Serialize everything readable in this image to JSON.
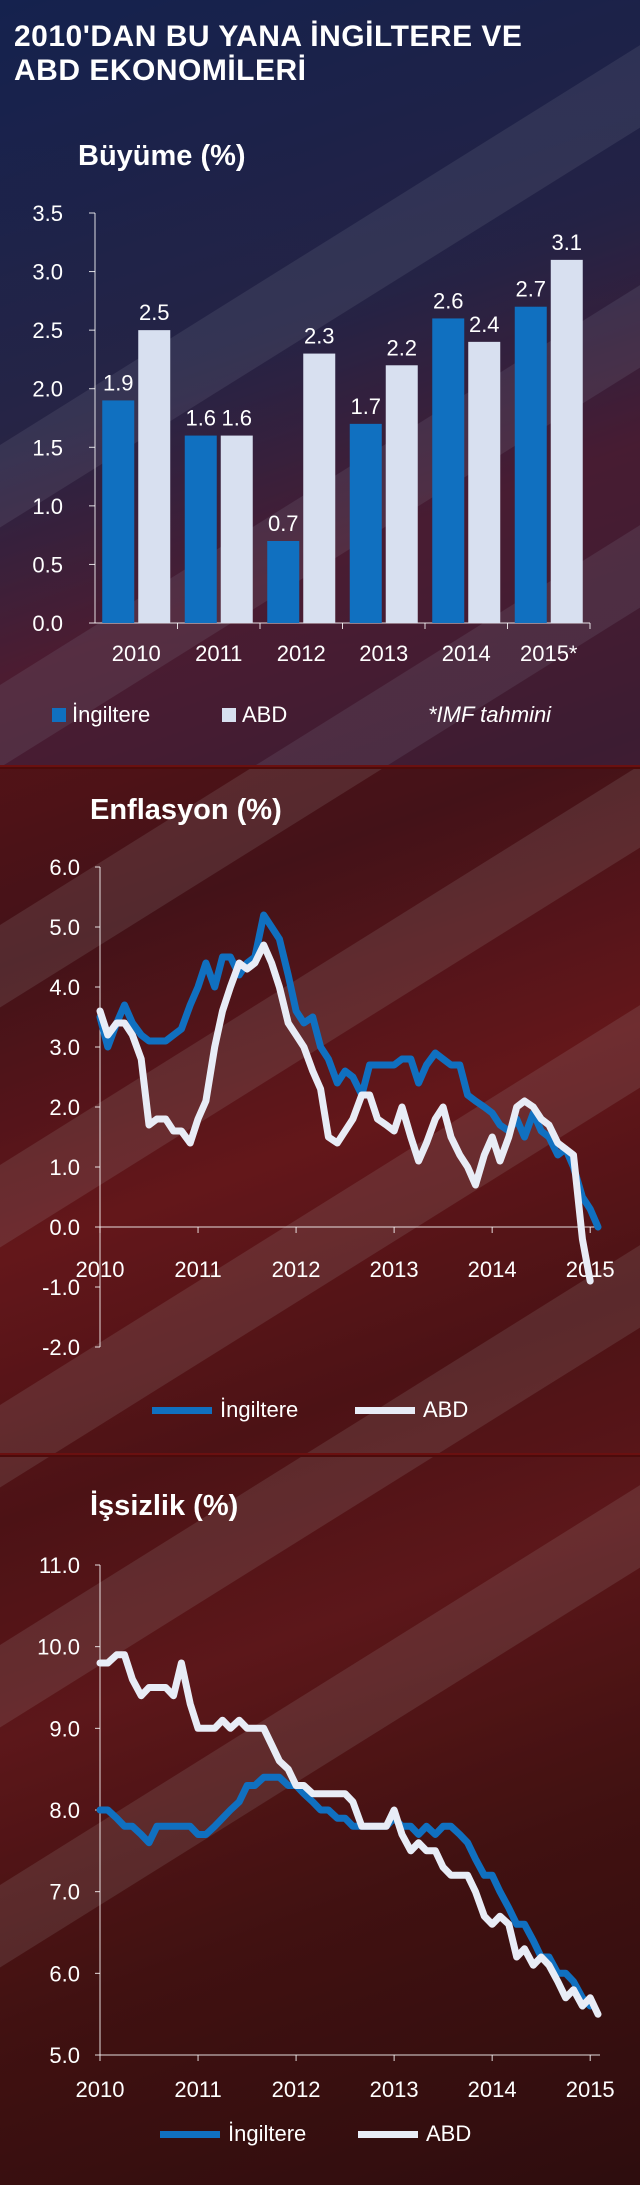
{
  "title": "2010'DAN BU YANA İNGİLTERE VE ABD EKONOMİLERİ",
  "colors": {
    "uk": "#1070c0",
    "us": "#d8e0f0"
  },
  "growth": {
    "subtitle": "Büyüme (%)",
    "note": "*IMF tahmini",
    "legend": {
      "uk": "İngiltere",
      "us": "ABD"
    }
  },
  "inflation": {
    "subtitle": "Enflasyon (%)",
    "legend": {
      "uk": "İngiltere",
      "us": "ABD"
    }
  },
  "unemployment": {
    "subtitle": "İşsizlik (%)",
    "legend": {
      "uk": "İngiltere",
      "us": "ABD"
    }
  },
  "chart_data": [
    {
      "type": "bar",
      "title": "Büyüme (%)",
      "categories": [
        "2010",
        "2011",
        "2012",
        "2013",
        "2014",
        "2015*"
      ],
      "series": [
        {
          "name": "İngiltere",
          "values": [
            1.9,
            1.6,
            0.7,
            1.7,
            2.6,
            2.7
          ]
        },
        {
          "name": "ABD",
          "values": [
            2.5,
            1.6,
            2.3,
            2.2,
            2.4,
            3.1
          ]
        }
      ],
      "value_labels": [
        [
          "1.9",
          "1.6",
          "0.7",
          "1.7",
          "2.6",
          "2.7"
        ],
        [
          "2.5",
          "1.6",
          "2.3",
          "2.2",
          "2.4",
          "3.1"
        ]
      ],
      "ylim": [
        0,
        3.5
      ],
      "yticks": [
        "0.0",
        "0.5",
        "1.0",
        "1.5",
        "2.0",
        "2.5",
        "3.0",
        "3.5"
      ],
      "legend": "bottom"
    },
    {
      "type": "line",
      "title": "Enflasyon (%)",
      "xlim": [
        2010,
        2015.1
      ],
      "xticks": [
        "2010",
        "2011",
        "2012",
        "2013",
        "2014",
        "2015"
      ],
      "ylim": [
        -2.0,
        6.0
      ],
      "yticks": [
        "6.0",
        "5.0",
        "4.0",
        "3.0",
        "2.0",
        "1.0",
        "0.0",
        "-1.0",
        "-2.0"
      ],
      "series": [
        {
          "name": "İngiltere",
          "x": [
            2010.0,
            2010.08,
            2010.17,
            2010.25,
            2010.33,
            2010.42,
            2010.5,
            2010.58,
            2010.67,
            2010.75,
            2010.83,
            2010.92,
            2011.0,
            2011.08,
            2011.17,
            2011.25,
            2011.33,
            2011.42,
            2011.5,
            2011.58,
            2011.67,
            2011.75,
            2011.83,
            2011.92,
            2012.0,
            2012.08,
            2012.17,
            2012.25,
            2012.33,
            2012.42,
            2012.5,
            2012.58,
            2012.67,
            2012.75,
            2012.83,
            2012.92,
            2013.0,
            2013.08,
            2013.17,
            2013.25,
            2013.33,
            2013.42,
            2013.5,
            2013.58,
            2013.67,
            2013.75,
            2013.83,
            2013.92,
            2014.0,
            2014.08,
            2014.17,
            2014.25,
            2014.33,
            2014.42,
            2014.5,
            2014.58,
            2014.67,
            2014.75,
            2014.83,
            2014.92,
            2015.0,
            2015.08
          ],
          "y": [
            3.5,
            3.0,
            3.4,
            3.7,
            3.4,
            3.2,
            3.1,
            3.1,
            3.1,
            3.2,
            3.3,
            3.7,
            4.0,
            4.4,
            4.0,
            4.5,
            4.5,
            4.2,
            4.4,
            4.5,
            5.2,
            5.0,
            4.8,
            4.2,
            3.6,
            3.4,
            3.5,
            3.0,
            2.8,
            2.4,
            2.6,
            2.5,
            2.2,
            2.7,
            2.7,
            2.7,
            2.7,
            2.8,
            2.8,
            2.4,
            2.7,
            2.9,
            2.8,
            2.7,
            2.7,
            2.2,
            2.1,
            2.0,
            1.9,
            1.7,
            1.6,
            1.8,
            1.5,
            1.9,
            1.6,
            1.5,
            1.2,
            1.3,
            1.0,
            0.5,
            0.3,
            0.0
          ]
        },
        {
          "name": "ABD",
          "x": [
            2010.0,
            2010.08,
            2010.17,
            2010.25,
            2010.33,
            2010.42,
            2010.5,
            2010.58,
            2010.67,
            2010.75,
            2010.83,
            2010.92,
            2011.0,
            2011.08,
            2011.17,
            2011.25,
            2011.33,
            2011.42,
            2011.5,
            2011.58,
            2011.67,
            2011.75,
            2011.83,
            2011.92,
            2012.0,
            2012.08,
            2012.17,
            2012.25,
            2012.33,
            2012.42,
            2012.5,
            2012.58,
            2012.67,
            2012.75,
            2012.83,
            2012.92,
            2013.0,
            2013.08,
            2013.17,
            2013.25,
            2013.33,
            2013.42,
            2013.5,
            2013.58,
            2013.67,
            2013.75,
            2013.83,
            2013.92,
            2014.0,
            2014.08,
            2014.17,
            2014.25,
            2014.33,
            2014.42,
            2014.5,
            2014.58,
            2014.67,
            2014.75,
            2014.83,
            2014.92,
            2015.0
          ],
          "y": [
            3.6,
            3.2,
            3.4,
            3.4,
            3.2,
            2.8,
            1.7,
            1.8,
            1.8,
            1.6,
            1.6,
            1.4,
            1.8,
            2.1,
            3.0,
            3.6,
            4.0,
            4.4,
            4.3,
            4.4,
            4.7,
            4.4,
            4.0,
            3.4,
            3.2,
            3.0,
            2.6,
            2.3,
            1.5,
            1.4,
            1.6,
            1.8,
            2.2,
            2.2,
            1.8,
            1.7,
            1.6,
            2.0,
            1.5,
            1.1,
            1.4,
            1.8,
            2.0,
            1.5,
            1.2,
            1.0,
            0.7,
            1.2,
            1.5,
            1.1,
            1.5,
            2.0,
            2.1,
            2.0,
            1.8,
            1.7,
            1.4,
            1.3,
            1.2,
            -0.2,
            -0.9
          ]
        }
      ],
      "legend": "bottom"
    },
    {
      "type": "line",
      "title": "İşsizlik (%)",
      "xlim": [
        2010,
        2015.1
      ],
      "xticks": [
        "2010",
        "2011",
        "2012",
        "2013",
        "2014",
        "2015"
      ],
      "ylim": [
        5.0,
        11.0
      ],
      "yticks": [
        "11.0",
        "10.0",
        "9.0",
        "8.0",
        "7.0",
        "6.0",
        "5.0"
      ],
      "series": [
        {
          "name": "İngiltere",
          "x": [
            2010.0,
            2010.08,
            2010.17,
            2010.25,
            2010.33,
            2010.42,
            2010.5,
            2010.58,
            2010.67,
            2010.75,
            2010.83,
            2010.92,
            2011.0,
            2011.08,
            2011.17,
            2011.25,
            2011.33,
            2011.42,
            2011.5,
            2011.58,
            2011.67,
            2011.75,
            2011.83,
            2011.92,
            2012.0,
            2012.08,
            2012.17,
            2012.25,
            2012.33,
            2012.42,
            2012.5,
            2012.58,
            2012.67,
            2012.75,
            2012.83,
            2012.92,
            2013.0,
            2013.08,
            2013.17,
            2013.25,
            2013.33,
            2013.42,
            2013.5,
            2013.58,
            2013.67,
            2013.75,
            2013.83,
            2013.92,
            2014.0,
            2014.08,
            2014.17,
            2014.25,
            2014.33,
            2014.42,
            2014.5,
            2014.58,
            2014.67,
            2014.75,
            2014.83,
            2014.92,
            2015.0
          ],
          "y": [
            8.0,
            8.0,
            7.9,
            7.8,
            7.8,
            7.7,
            7.6,
            7.8,
            7.8,
            7.8,
            7.8,
            7.8,
            7.7,
            7.7,
            7.8,
            7.9,
            8.0,
            8.1,
            8.3,
            8.3,
            8.4,
            8.4,
            8.4,
            8.3,
            8.3,
            8.2,
            8.1,
            8.0,
            8.0,
            7.9,
            7.9,
            7.8,
            7.8,
            7.8,
            7.8,
            7.8,
            7.9,
            7.8,
            7.8,
            7.7,
            7.8,
            7.7,
            7.8,
            7.8,
            7.7,
            7.6,
            7.4,
            7.2,
            7.2,
            7.0,
            6.8,
            6.6,
            6.6,
            6.4,
            6.2,
            6.2,
            6.0,
            6.0,
            5.9,
            5.7,
            5.6
          ]
        },
        {
          "name": "ABD",
          "x": [
            2010.0,
            2010.08,
            2010.17,
            2010.25,
            2010.33,
            2010.42,
            2010.5,
            2010.58,
            2010.67,
            2010.75,
            2010.83,
            2010.92,
            2011.0,
            2011.08,
            2011.17,
            2011.25,
            2011.33,
            2011.42,
            2011.5,
            2011.58,
            2011.67,
            2011.75,
            2011.83,
            2011.92,
            2012.0,
            2012.08,
            2012.17,
            2012.25,
            2012.33,
            2012.42,
            2012.5,
            2012.58,
            2012.67,
            2012.75,
            2012.83,
            2012.92,
            2013.0,
            2013.08,
            2013.17,
            2013.25,
            2013.33,
            2013.42,
            2013.5,
            2013.58,
            2013.67,
            2013.75,
            2013.83,
            2013.92,
            2014.0,
            2014.08,
            2014.17,
            2014.25,
            2014.33,
            2014.42,
            2014.5,
            2014.58,
            2014.67,
            2014.75,
            2014.83,
            2014.92,
            2015.0,
            2015.08
          ],
          "y": [
            9.8,
            9.8,
            9.9,
            9.9,
            9.6,
            9.4,
            9.5,
            9.5,
            9.5,
            9.4,
            9.8,
            9.3,
            9.0,
            9.0,
            9.0,
            9.1,
            9.0,
            9.1,
            9.0,
            9.0,
            9.0,
            8.8,
            8.6,
            8.5,
            8.3,
            8.3,
            8.2,
            8.2,
            8.2,
            8.2,
            8.2,
            8.1,
            7.8,
            7.8,
            7.8,
            7.8,
            8.0,
            7.7,
            7.5,
            7.6,
            7.5,
            7.5,
            7.3,
            7.2,
            7.2,
            7.2,
            7.0,
            6.7,
            6.6,
            6.7,
            6.6,
            6.2,
            6.3,
            6.1,
            6.2,
            6.1,
            5.9,
            5.7,
            5.8,
            5.6,
            5.7,
            5.5
          ]
        }
      ],
      "legend": "bottom"
    }
  ]
}
